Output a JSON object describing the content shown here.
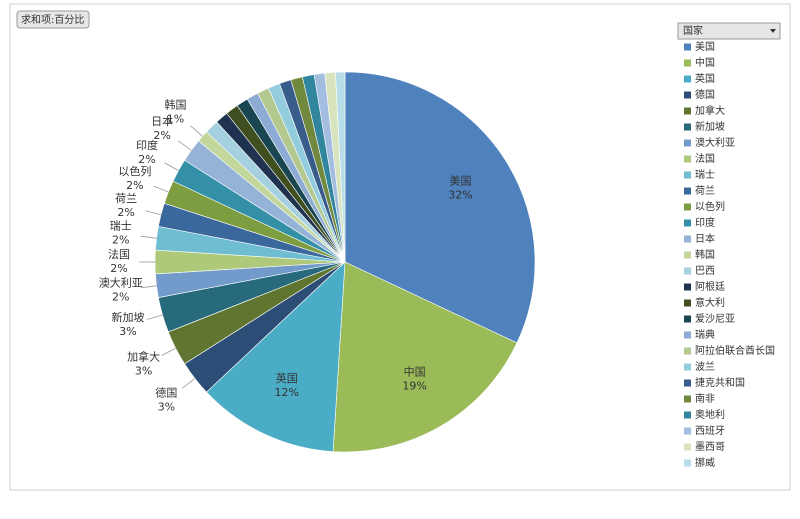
{
  "chart_data": {
    "type": "pie",
    "title": "求和项:百分比",
    "legend_title": "国家",
    "categories": [
      "美国",
      "中国",
      "英国",
      "德国",
      "加拿大",
      "新加坡",
      "澳大利亚",
      "法国",
      "瑞士",
      "荷兰",
      "以色列",
      "印度",
      "日本",
      "韩国",
      "巴西",
      "阿根廷",
      "意大利",
      "爱沙尼亚",
      "瑞典",
      "阿拉伯联合酋长国",
      "波兰",
      "捷克共和国",
      "南非",
      "奥地利",
      "西班牙",
      "墨西哥",
      "挪威"
    ],
    "values": [
      32,
      19,
      12,
      3,
      3,
      3,
      2,
      2,
      2,
      2,
      2,
      2,
      2,
      1,
      1.2,
      1.1,
      1.1,
      1.0,
      1.0,
      1.0,
      1.0,
      1.0,
      1.0,
      1.0,
      0.9,
      0.9,
      0.8
    ],
    "value_labels": [
      "32%",
      "19%",
      "12%",
      "3%",
      "3%",
      "3%",
      "2%",
      "2%",
      "2%",
      "2%",
      "2%",
      "2%",
      "2%",
      "1%",
      null,
      null,
      null,
      null,
      null,
      null,
      null,
      null,
      null,
      null,
      null,
      null,
      null
    ],
    "colors": [
      "#4f81bd",
      "#9bbb59",
      "#4bacc6",
      "#2c4d75",
      "#5f7530",
      "#276a7c",
      "#729aca",
      "#afc97a",
      "#6fbdd1",
      "#3a679c",
      "#7e9c40",
      "#3490a7",
      "#95b3d7",
      "#c3d69b",
      "#a5d0df",
      "#1f3350",
      "#3f4f20",
      "#1a4652",
      "#8eabd5",
      "#b3c98f",
      "#93cddd",
      "#385d8a",
      "#71893f",
      "#31859c",
      "#a3bde0",
      "#d7e4bd",
      "#b7dee8"
    ]
  }
}
